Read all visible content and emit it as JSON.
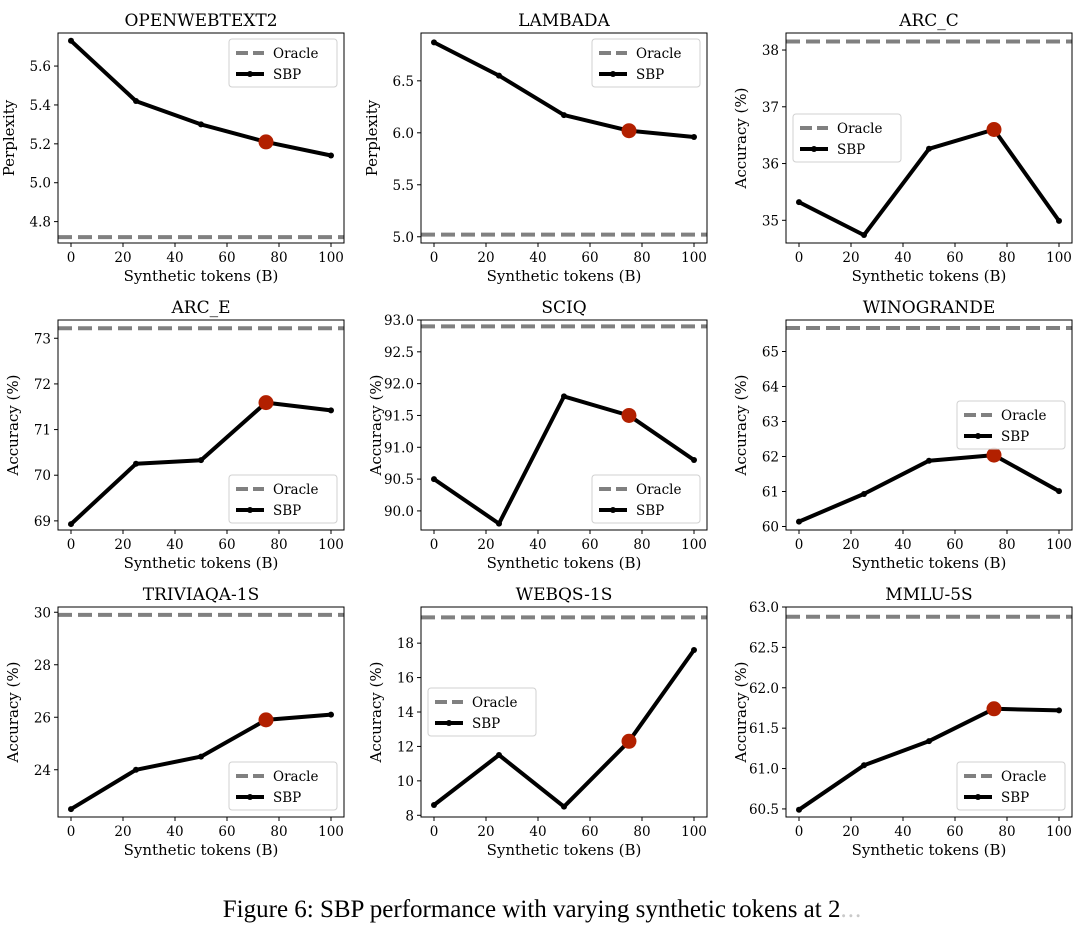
{
  "caption": {
    "text": "Figure 6: SBP performance with varying synthetic tokens at 2",
    "cut_off_text": "..."
  },
  "legend": {
    "oracle": "Oracle",
    "sbp": "SBP"
  },
  "colors": {
    "line": "#000000",
    "oracle": "#808080",
    "highlight": "#b22000"
  },
  "chart_data": [
    {
      "type": "line",
      "title": "OPENWEBTEXT2",
      "xlabel": "Synthetic tokens (B)",
      "ylabel": "Perplexity",
      "x": [
        0,
        25,
        50,
        75,
        100
      ],
      "values": [
        5.73,
        5.42,
        5.3,
        5.21,
        5.14
      ],
      "oracle": 4.72,
      "highlight_x": 75,
      "ylim": [
        4.69,
        5.77
      ],
      "yticks": [
        4.8,
        5.0,
        5.2,
        5.4,
        5.6
      ],
      "ytick_labels": [
        "4.8",
        "5.0",
        "5.2",
        "5.4",
        "5.6"
      ],
      "xticks": [
        0,
        20,
        40,
        60,
        80,
        100
      ],
      "legend_loc": "upper right"
    },
    {
      "type": "line",
      "title": "LAMBADA",
      "xlabel": "Synthetic tokens (B)",
      "ylabel": "Perplexity",
      "x": [
        0,
        25,
        50,
        75,
        100
      ],
      "values": [
        6.87,
        6.55,
        6.17,
        6.02,
        5.96
      ],
      "oracle": 5.02,
      "highlight_x": 75,
      "ylim": [
        4.94,
        6.96
      ],
      "yticks": [
        5.0,
        5.5,
        6.0,
        6.5
      ],
      "ytick_labels": [
        "5.0",
        "5.5",
        "6.0",
        "6.5"
      ],
      "xticks": [
        0,
        20,
        40,
        60,
        80,
        100
      ],
      "legend_loc": "upper right"
    },
    {
      "type": "line",
      "title": "ARC_C",
      "xlabel": "Synthetic tokens (B)",
      "ylabel": "Accuracy (%)",
      "x": [
        0,
        25,
        50,
        75,
        100
      ],
      "values": [
        35.32,
        34.74,
        36.26,
        36.6,
        34.99
      ],
      "oracle": 38.15,
      "highlight_x": 75,
      "ylim": [
        34.6,
        38.3
      ],
      "yticks": [
        35,
        36,
        37,
        38
      ],
      "ytick_labels": [
        "35",
        "36",
        "37",
        "38"
      ],
      "xticks": [
        0,
        20,
        40,
        60,
        80,
        100
      ],
      "legend_loc": "center left"
    },
    {
      "type": "line",
      "title": "ARC_E",
      "xlabel": "Synthetic tokens (B)",
      "ylabel": "Accuracy (%)",
      "x": [
        0,
        25,
        50,
        75,
        100
      ],
      "values": [
        68.93,
        70.25,
        70.33,
        71.59,
        71.42
      ],
      "oracle": 73.22,
      "highlight_x": 75,
      "ylim": [
        68.8,
        73.4
      ],
      "yticks": [
        69,
        70,
        71,
        72,
        73
      ],
      "ytick_labels": [
        "69",
        "70",
        "71",
        "72",
        "73"
      ],
      "xticks": [
        0,
        20,
        40,
        60,
        80,
        100
      ],
      "legend_loc": "lower right"
    },
    {
      "type": "line",
      "title": "SCIQ",
      "xlabel": "Synthetic tokens (B)",
      "ylabel": "Accuracy (%)",
      "x": [
        0,
        25,
        50,
        75,
        100
      ],
      "values": [
        90.5,
        89.8,
        91.8,
        91.5,
        90.8
      ],
      "oracle": 92.9,
      "highlight_x": 75,
      "ylim": [
        89.7,
        93.0
      ],
      "yticks": [
        90.0,
        90.5,
        91.0,
        91.5,
        92.0,
        92.5,
        93.0
      ],
      "ytick_labels": [
        "90.0",
        "90.5",
        "91.0",
        "91.5",
        "92.0",
        "92.5",
        "93.0"
      ],
      "xticks": [
        0,
        20,
        40,
        60,
        80,
        100
      ],
      "legend_loc": "lower right"
    },
    {
      "type": "line",
      "title": "WINOGRANDE",
      "xlabel": "Synthetic tokens (B)",
      "ylabel": "Accuracy (%)",
      "x": [
        0,
        25,
        50,
        75,
        100
      ],
      "values": [
        60.14,
        60.93,
        61.88,
        62.04,
        61.01
      ],
      "oracle": 65.67,
      "highlight_x": 75,
      "ylim": [
        59.9,
        65.9
      ],
      "yticks": [
        60,
        61,
        62,
        63,
        64,
        65
      ],
      "ytick_labels": [
        "60",
        "61",
        "62",
        "63",
        "64",
        "65"
      ],
      "xticks": [
        0,
        20,
        40,
        60,
        80,
        100
      ],
      "legend_loc": "center right"
    },
    {
      "type": "line",
      "title": "TRIVIAQA-1S",
      "xlabel": "Synthetic tokens (B)",
      "ylabel": "Accuracy (%)",
      "x": [
        0,
        25,
        50,
        75,
        100
      ],
      "values": [
        22.5,
        24.0,
        24.5,
        25.9,
        26.1
      ],
      "oracle": 29.9,
      "highlight_x": 75,
      "ylim": [
        22.2,
        30.2
      ],
      "yticks": [
        24,
        26,
        28,
        30
      ],
      "ytick_labels": [
        "24",
        "26",
        "28",
        "30"
      ],
      "xticks": [
        0,
        20,
        40,
        60,
        80,
        100
      ],
      "legend_loc": "lower right"
    },
    {
      "type": "line",
      "title": "WEBQS-1S",
      "xlabel": "Synthetic tokens (B)",
      "ylabel": "Accuracy (%)",
      "x": [
        0,
        25,
        50,
        75,
        100
      ],
      "values": [
        8.6,
        11.5,
        8.5,
        12.3,
        17.6
      ],
      "oracle": 19.5,
      "highlight_x": 75,
      "ylim": [
        7.9,
        20.1
      ],
      "yticks": [
        8,
        10,
        12,
        14,
        16,
        18
      ],
      "ytick_labels": [
        "8",
        "10",
        "12",
        "14",
        "16",
        "18"
      ],
      "xticks": [
        0,
        20,
        40,
        60,
        80,
        100
      ],
      "legend_loc": "center left"
    },
    {
      "type": "line",
      "title": "MMLU-5S",
      "xlabel": "Synthetic tokens (B)",
      "ylabel": "Accuracy (%)",
      "x": [
        0,
        25,
        50,
        75,
        100
      ],
      "values": [
        60.49,
        61.04,
        61.34,
        61.74,
        61.72
      ],
      "oracle": 62.88,
      "highlight_x": 75,
      "ylim": [
        60.4,
        63.0
      ],
      "yticks": [
        60.5,
        61.0,
        61.5,
        62.0,
        62.5,
        63.0
      ],
      "ytick_labels": [
        "60.5",
        "61.0",
        "61.5",
        "62.0",
        "62.5",
        "63.0"
      ],
      "xticks": [
        0,
        20,
        40,
        60,
        80,
        100
      ],
      "legend_loc": "lower right"
    }
  ]
}
